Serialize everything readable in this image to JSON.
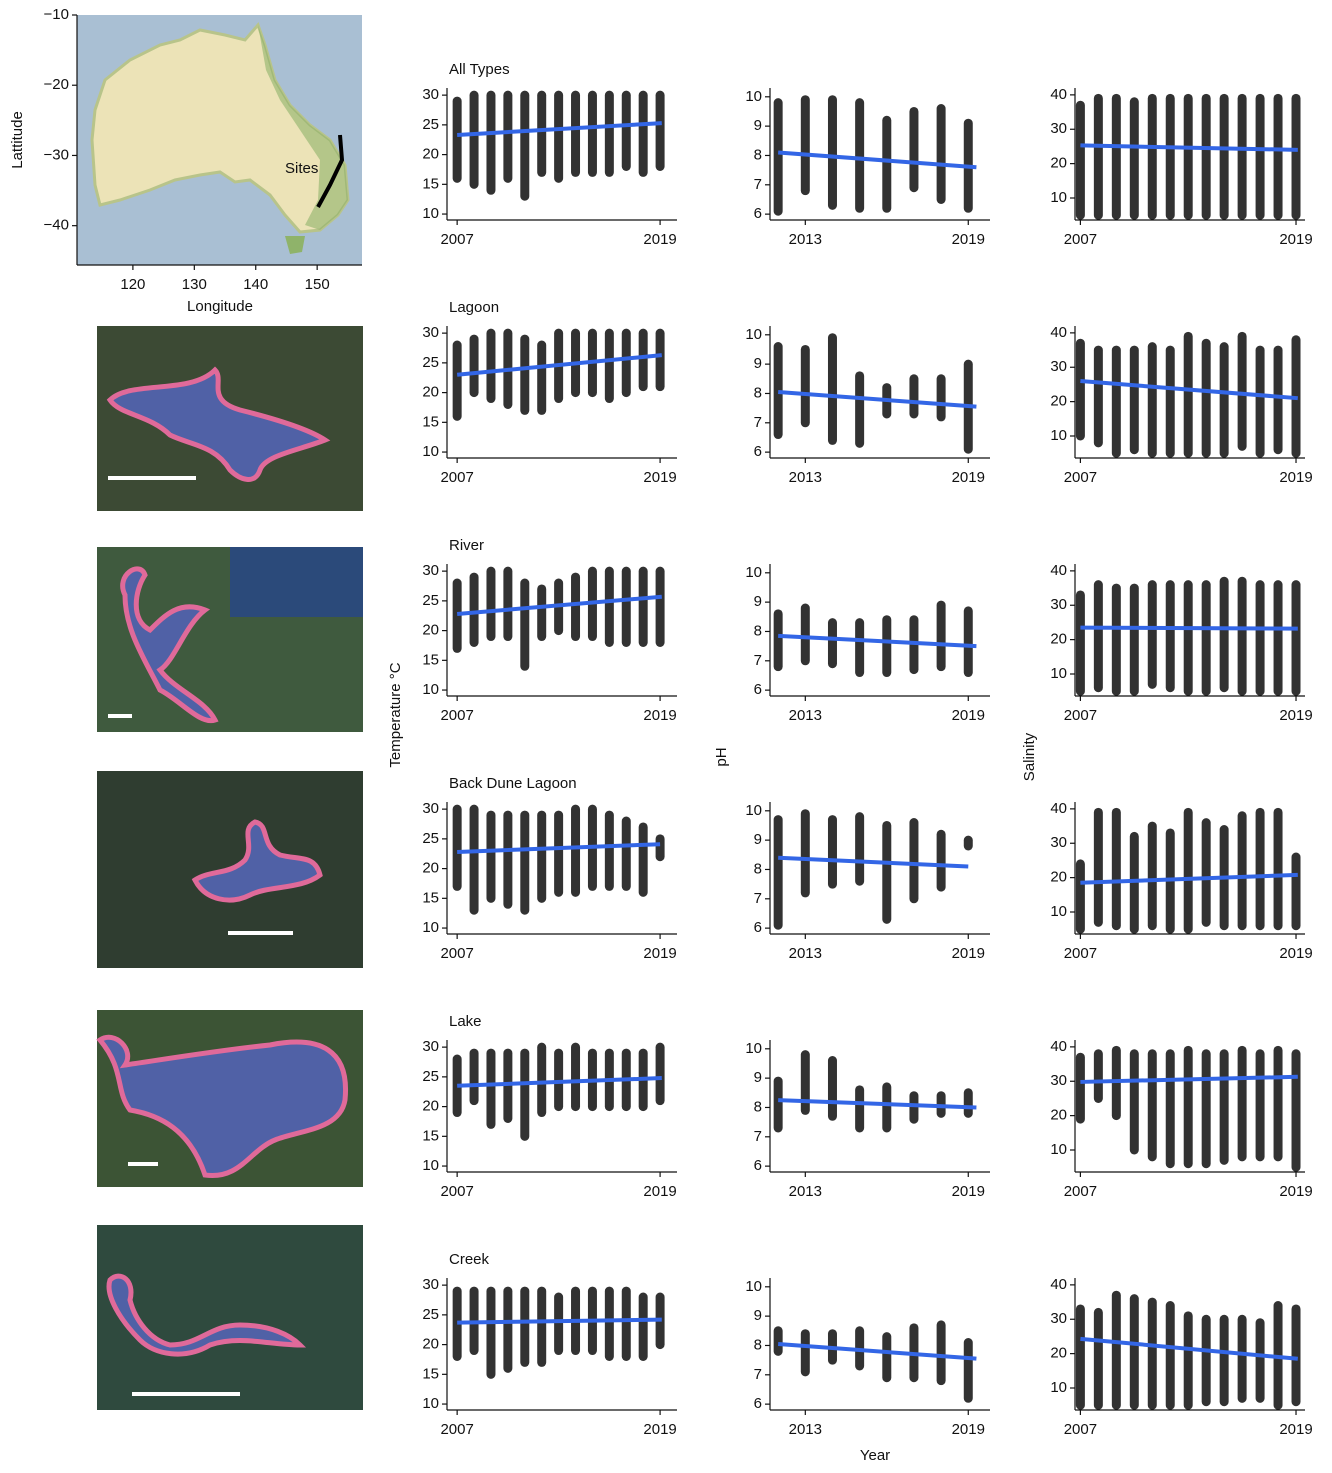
{
  "axis_labels": {
    "temperature": "Temperature °C",
    "ph": "pH",
    "salinity": "Salinity",
    "year": "Year"
  },
  "chart_data": [
    {
      "type": "map",
      "xlabel": "Longitude",
      "ylabel": "Lattitude",
      "annotation": "Sites",
      "xlim": [
        110.9,
        157.3
      ],
      "xticks": [
        120,
        130,
        140,
        150
      ],
      "ylim": [
        -45.6,
        -10
      ],
      "yticks": [
        {
          "value": -10,
          "label": "−10"
        },
        {
          "value": -20,
          "label": "−20"
        },
        {
          "value": -30,
          "label": "−30"
        },
        {
          "value": -40,
          "label": "−40"
        }
      ]
    },
    {
      "type": "strip",
      "title": "All Types",
      "xlim": [
        2006.4,
        2020
      ],
      "xticks": [
        2007,
        2019
      ],
      "ylim": [
        9,
        31.2
      ],
      "yticks": [
        10,
        15,
        20,
        25,
        30
      ],
      "x": [
        2007,
        2008,
        2009,
        2010,
        2011,
        2012,
        2013,
        2014,
        2015,
        2016,
        2017,
        2018,
        2019
      ],
      "low": [
        16,
        15,
        14,
        16,
        13,
        17,
        16,
        17,
        17,
        17,
        18,
        17,
        18
      ],
      "high": [
        29,
        30,
        30,
        30,
        30,
        30,
        30,
        30,
        30,
        30,
        30,
        30,
        30
      ],
      "trend": {
        "x": [
          2007,
          2019.1
        ],
        "values": [
          23.3,
          25.3
        ]
      }
    },
    {
      "type": "strip",
      "xlim": [
        2011.7,
        2019.8
      ],
      "xticks": [
        2013,
        2019
      ],
      "ylim": [
        5.8,
        10.3
      ],
      "yticks": [
        6,
        7,
        8,
        9,
        10
      ],
      "x": [
        2012,
        2013,
        2014,
        2015,
        2016,
        2017,
        2018,
        2019
      ],
      "low": [
        6.1,
        6.8,
        6.3,
        6.2,
        6.2,
        6.9,
        6.5,
        6.2
      ],
      "high": [
        9.8,
        9.9,
        9.9,
        9.8,
        9.2,
        9.5,
        9.6,
        9.1
      ],
      "trend": {
        "x": [
          2012,
          2019.3
        ],
        "values": [
          8.1,
          7.6
        ]
      }
    },
    {
      "type": "strip",
      "xlim": [
        2006.7,
        2019.5
      ],
      "xticks": [
        2007,
        2019
      ],
      "ylim": [
        3.6,
        42
      ],
      "yticks": [
        10,
        20,
        30,
        40
      ],
      "x": [
        2007,
        2008,
        2009,
        2010,
        2011,
        2012,
        2013,
        2014,
        2015,
        2016,
        2017,
        2018,
        2019
      ],
      "low": [
        5,
        5,
        5,
        5,
        5,
        5,
        5,
        5,
        5,
        5,
        5,
        5,
        5
      ],
      "high": [
        37,
        39,
        39,
        38,
        39,
        39,
        39,
        39,
        39,
        39,
        39,
        39,
        39
      ],
      "trend": {
        "x": [
          2007,
          2019.1
        ],
        "values": [
          25.3,
          24
        ]
      }
    },
    {
      "type": "strip",
      "title": "Lagoon",
      "xlim": [
        2006.4,
        2020
      ],
      "xticks": [
        2007,
        2019
      ],
      "ylim": [
        9,
        31.2
      ],
      "yticks": [
        10,
        15,
        20,
        25,
        30
      ],
      "x": [
        2007,
        2008,
        2009,
        2010,
        2011,
        2012,
        2013,
        2014,
        2015,
        2016,
        2017,
        2018,
        2019
      ],
      "low": [
        16,
        20,
        19,
        18,
        17,
        17,
        19,
        20,
        20,
        19,
        20,
        21,
        21
      ],
      "high": [
        28,
        29,
        30,
        30,
        29,
        28,
        30,
        30,
        30,
        30,
        30,
        30,
        30
      ],
      "trend": {
        "x": [
          2007,
          2019.1
        ],
        "values": [
          23,
          26.3
        ]
      }
    },
    {
      "type": "strip",
      "xlim": [
        2011.7,
        2019.8
      ],
      "xticks": [
        2013,
        2019
      ],
      "ylim": [
        5.8,
        10.3
      ],
      "yticks": [
        6,
        7,
        8,
        9,
        10
      ],
      "x": [
        2012,
        2013,
        2014,
        2015,
        2016,
        2017,
        2018,
        2019
      ],
      "low": [
        6.6,
        7,
        6.4,
        6.3,
        7.3,
        7.3,
        7.2,
        6.1
      ],
      "high": [
        9.6,
        9.5,
        9.9,
        8.6,
        8.2,
        8.5,
        8.5,
        9
      ],
      "trend": {
        "x": [
          2012,
          2019.3
        ],
        "values": [
          8.05,
          7.55
        ]
      }
    },
    {
      "type": "strip",
      "xlim": [
        2006.7,
        2019.5
      ],
      "xticks": [
        2007,
        2019
      ],
      "ylim": [
        3.6,
        42
      ],
      "yticks": [
        10,
        20,
        30,
        40
      ],
      "x": [
        2007,
        2008,
        2009,
        2010,
        2011,
        2012,
        2013,
        2014,
        2015,
        2016,
        2017,
        2018,
        2019
      ],
      "low": [
        10,
        8,
        5,
        6,
        5,
        5,
        5,
        5,
        5,
        7,
        5,
        6,
        5
      ],
      "high": [
        37,
        35,
        35,
        35,
        36,
        35,
        39,
        37,
        36,
        39,
        35,
        35,
        38
      ],
      "trend": {
        "x": [
          2007,
          2019.1
        ],
        "values": [
          26,
          21
        ]
      }
    },
    {
      "type": "strip",
      "title": "River",
      "xlim": [
        2006.4,
        2020
      ],
      "xticks": [
        2007,
        2019
      ],
      "ylim": [
        9,
        31.2
      ],
      "yticks": [
        10,
        15,
        20,
        25,
        30
      ],
      "x": [
        2007,
        2008,
        2009,
        2010,
        2011,
        2012,
        2013,
        2014,
        2015,
        2016,
        2017,
        2018,
        2019
      ],
      "low": [
        17,
        18,
        19,
        19,
        14,
        19,
        20,
        19,
        19,
        18,
        18,
        18,
        18
      ],
      "high": [
        28,
        29,
        30,
        30,
        28,
        27,
        28,
        29,
        30,
        30,
        30,
        30,
        30
      ],
      "trend": {
        "x": [
          2007,
          2019.1
        ],
        "values": [
          22.8,
          25.7
        ]
      }
    },
    {
      "type": "strip",
      "xlim": [
        2011.7,
        2019.8
      ],
      "xticks": [
        2013,
        2019
      ],
      "ylim": [
        5.8,
        10.3
      ],
      "yticks": [
        6,
        7,
        8,
        9,
        10
      ],
      "x": [
        2012,
        2013,
        2014,
        2015,
        2016,
        2017,
        2018,
        2019
      ],
      "low": [
        6.8,
        7,
        6.9,
        6.6,
        6.6,
        6.7,
        6.8,
        6.6
      ],
      "high": [
        8.6,
        8.8,
        8.3,
        8.3,
        8.4,
        8.4,
        8.9,
        8.7
      ],
      "trend": {
        "x": [
          2012,
          2019.3
        ],
        "values": [
          7.85,
          7.5
        ]
      }
    },
    {
      "type": "strip",
      "xlim": [
        2006.7,
        2019.5
      ],
      "xticks": [
        2007,
        2019
      ],
      "ylim": [
        3.6,
        42
      ],
      "yticks": [
        10,
        20,
        30,
        40
      ],
      "x": [
        2007,
        2008,
        2009,
        2010,
        2011,
        2012,
        2013,
        2014,
        2015,
        2016,
        2017,
        2018,
        2019
      ],
      "low": [
        5,
        6,
        5,
        5,
        7,
        6,
        5,
        5,
        6,
        5,
        5,
        5,
        5
      ],
      "high": [
        33,
        36,
        35,
        35,
        36,
        36,
        36,
        36,
        37,
        37,
        36,
        36,
        36
      ],
      "trend": {
        "x": [
          2007,
          2019.1
        ],
        "values": [
          23.5,
          23.2
        ]
      }
    },
    {
      "type": "strip",
      "title": "Back Dune Lagoon",
      "xlim": [
        2006.4,
        2020
      ],
      "xticks": [
        2007,
        2019
      ],
      "ylim": [
        9,
        31.2
      ],
      "yticks": [
        10,
        15,
        20,
        25,
        30
      ],
      "x": [
        2007,
        2008,
        2009,
        2010,
        2011,
        2012,
        2013,
        2014,
        2015,
        2016,
        2017,
        2018,
        2019
      ],
      "low": [
        17,
        13,
        15,
        14,
        13,
        15,
        16,
        16,
        17,
        17,
        17,
        16,
        22
      ],
      "high": [
        30,
        30,
        29,
        29,
        29,
        29,
        29,
        30,
        30,
        29,
        28,
        27,
        25
      ],
      "trend": {
        "x": [
          2007,
          2019
        ],
        "values": [
          22.8,
          24.1
        ]
      }
    },
    {
      "type": "strip",
      "xlim": [
        2011.7,
        2019.8
      ],
      "xticks": [
        2013,
        2019
      ],
      "ylim": [
        5.8,
        10.3
      ],
      "yticks": [
        6,
        7,
        8,
        9,
        10
      ],
      "x": [
        2012,
        2013,
        2014,
        2015,
        2016,
        2017,
        2018,
        2019
      ],
      "low": [
        6.1,
        7.2,
        7.5,
        7.6,
        6.3,
        7,
        7.4,
        8.8
      ],
      "high": [
        9.7,
        9.9,
        9.7,
        9.8,
        9.5,
        9.6,
        9.2,
        9
      ],
      "trend": {
        "x": [
          2012,
          2019
        ],
        "values": [
          8.4,
          8.1
        ]
      }
    },
    {
      "type": "strip",
      "xlim": [
        2006.7,
        2019.5
      ],
      "xticks": [
        2007,
        2019
      ],
      "ylim": [
        3.6,
        42
      ],
      "yticks": [
        10,
        20,
        30,
        40
      ],
      "x": [
        2007,
        2008,
        2009,
        2010,
        2011,
        2012,
        2013,
        2014,
        2015,
        2016,
        2017,
        2018,
        2019
      ],
      "low": [
        5,
        7,
        6,
        5,
        6,
        5,
        5,
        7,
        6,
        6,
        6,
        6,
        6
      ],
      "high": [
        24,
        39,
        39,
        32,
        35,
        33,
        39,
        36,
        34,
        38,
        39,
        39,
        26
      ],
      "trend": {
        "x": [
          2007,
          2019.1
        ],
        "values": [
          18.5,
          20.8
        ]
      }
    },
    {
      "type": "strip",
      "title": "Lake",
      "xlim": [
        2006.4,
        2020
      ],
      "xticks": [
        2007,
        2019
      ],
      "ylim": [
        9,
        31.2
      ],
      "yticks": [
        10,
        15,
        20,
        25,
        30
      ],
      "x": [
        2007,
        2008,
        2009,
        2010,
        2011,
        2012,
        2013,
        2014,
        2015,
        2016,
        2017,
        2018,
        2019
      ],
      "low": [
        19,
        21,
        17,
        18,
        15,
        19,
        20,
        20,
        20,
        20,
        20,
        20,
        21
      ],
      "high": [
        28,
        29,
        29,
        29,
        29,
        30,
        29,
        30,
        29,
        29,
        29,
        29,
        30
      ],
      "trend": {
        "x": [
          2007,
          2019.1
        ],
        "values": [
          23.5,
          24.8
        ]
      }
    },
    {
      "type": "strip",
      "xlim": [
        2011.7,
        2019.8
      ],
      "xticks": [
        2013,
        2019
      ],
      "ylim": [
        5.8,
        10.3
      ],
      "yticks": [
        6,
        7,
        8,
        9,
        10
      ],
      "x": [
        2012,
        2013,
        2014,
        2015,
        2016,
        2017,
        2018,
        2019
      ],
      "low": [
        7.3,
        7.9,
        7.7,
        7.3,
        7.3,
        7.6,
        7.8,
        7.8
      ],
      "high": [
        8.9,
        9.8,
        9.6,
        8.6,
        8.7,
        8.4,
        8.4,
        8.5
      ],
      "trend": {
        "x": [
          2012,
          2019.3
        ],
        "values": [
          8.25,
          8
        ]
      }
    },
    {
      "type": "strip",
      "xlim": [
        2006.7,
        2019.5
      ],
      "xticks": [
        2007,
        2019
      ],
      "ylim": [
        3.6,
        42
      ],
      "yticks": [
        10,
        20,
        30,
        40
      ],
      "x": [
        2007,
        2008,
        2009,
        2010,
        2011,
        2012,
        2013,
        2014,
        2015,
        2016,
        2017,
        2018,
        2019
      ],
      "low": [
        19,
        25,
        20,
        10,
        8,
        6,
        6,
        6,
        7,
        8,
        8,
        8,
        5
      ],
      "high": [
        37,
        38,
        39,
        38,
        38,
        38,
        39,
        38,
        38,
        39,
        38,
        39,
        38
      ],
      "trend": {
        "x": [
          2007,
          2019.1
        ],
        "values": [
          29.8,
          31.3
        ]
      }
    },
    {
      "type": "strip",
      "title": "Creek",
      "xlim": [
        2006.4,
        2020
      ],
      "xticks": [
        2007,
        2019
      ],
      "ylim": [
        9,
        31.2
      ],
      "yticks": [
        10,
        15,
        20,
        25,
        30
      ],
      "x": [
        2007,
        2008,
        2009,
        2010,
        2011,
        2012,
        2013,
        2014,
        2015,
        2016,
        2017,
        2018,
        2019
      ],
      "low": [
        18,
        19,
        15,
        16,
        17,
        17,
        19,
        19,
        19,
        18,
        18,
        18,
        20
      ],
      "high": [
        29,
        29,
        29,
        29,
        29,
        29,
        28,
        29,
        29,
        29,
        29,
        28,
        28
      ],
      "trend": {
        "x": [
          2007,
          2019.1
        ],
        "values": [
          23.7,
          24.2
        ]
      }
    },
    {
      "type": "strip",
      "xlim": [
        2011.7,
        2019.8
      ],
      "xticks": [
        2013,
        2019
      ],
      "ylim": [
        5.8,
        10.3
      ],
      "yticks": [
        6,
        7,
        8,
        9,
        10
      ],
      "x": [
        2012,
        2013,
        2014,
        2015,
        2016,
        2017,
        2018,
        2019
      ],
      "low": [
        7.8,
        7.1,
        7.5,
        7.3,
        6.9,
        6.9,
        6.8,
        6.2
      ],
      "high": [
        8.5,
        8.4,
        8.4,
        8.5,
        8.3,
        8.6,
        8.7,
        8.1
      ],
      "trend": {
        "x": [
          2012,
          2019.3
        ],
        "values": [
          8.05,
          7.55
        ]
      }
    },
    {
      "type": "strip",
      "xlim": [
        2006.7,
        2019.5
      ],
      "xticks": [
        2007,
        2019
      ],
      "ylim": [
        3.6,
        42
      ],
      "yticks": [
        10,
        20,
        30,
        40
      ],
      "x": [
        2007,
        2008,
        2009,
        2010,
        2011,
        2012,
        2013,
        2014,
        2015,
        2016,
        2017,
        2018,
        2019
      ],
      "low": [
        5,
        5,
        5,
        5,
        5,
        5,
        5,
        6,
        6,
        7,
        7,
        5,
        6
      ],
      "high": [
        33,
        32,
        37,
        36,
        35,
        34,
        31,
        30,
        30,
        30,
        29,
        34,
        33
      ],
      "trend": {
        "x": [
          2007,
          2019.1
        ],
        "values": [
          24.3,
          18.5
        ]
      }
    }
  ]
}
